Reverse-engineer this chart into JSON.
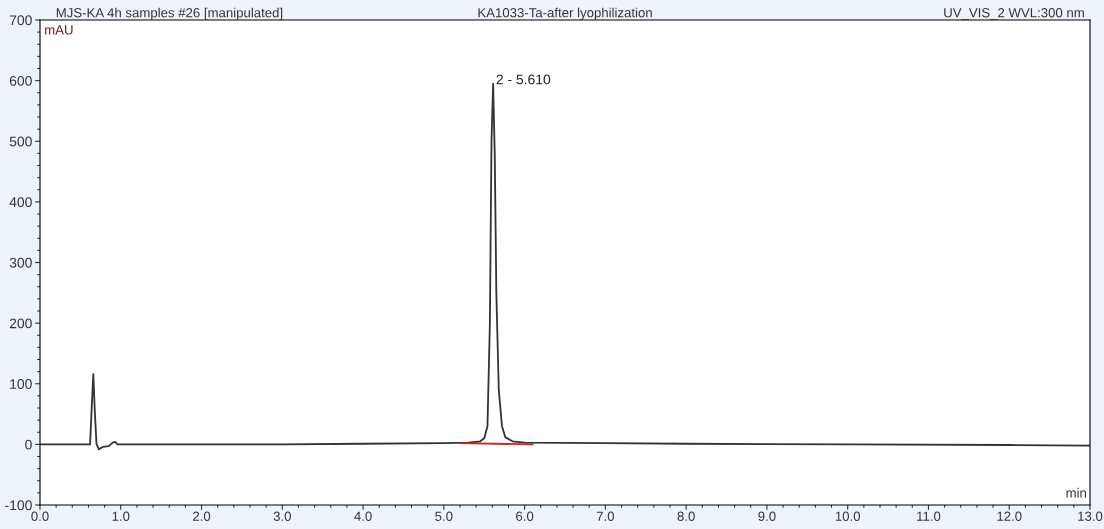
{
  "chart_data": {
    "type": "line",
    "title": "KA1033-Ta-after lyophilization",
    "xlabel": "min",
    "ylabel": "mAU",
    "annotations": [
      "MJS-KA 4h samples #26 [manipulated]",
      "UV_VIS_2 WVL:300 nm",
      {
        "text": "2 - 5.610",
        "x": 5.61,
        "y": 600
      }
    ],
    "series": [
      {
        "color": "#333333",
        "x": [
          0,
          0.62,
          0.64,
          0.66,
          0.68,
          0.7,
          0.73,
          0.78,
          0.85,
          0.9,
          0.93,
          0.96,
          1.5,
          3,
          4,
          5,
          5.3,
          5.45,
          5.5,
          5.54,
          5.57,
          5.59,
          5.61,
          5.63,
          5.65,
          5.68,
          5.72,
          5.76,
          5.85,
          6,
          7,
          8,
          10,
          12,
          13
        ],
        "values": [
          0,
          0,
          60,
          116,
          50,
          0,
          -8,
          -4,
          -3,
          3,
          4,
          0,
          0,
          0,
          1,
          2,
          3,
          5,
          10,
          30,
          200,
          500,
          595,
          480,
          250,
          90,
          30,
          12,
          5,
          3,
          2,
          1,
          0,
          -1,
          -2
        ]
      },
      {
        "color": "#cc2222",
        "x": [
          5.2,
          6.1
        ],
        "values": [
          2,
          0
        ]
      }
    ],
    "xlim": [
      0,
      13
    ],
    "ylim": [
      -100,
      700
    ],
    "xticks": [
      {
        "value": 0,
        "label": "0.0"
      },
      {
        "value": 1,
        "label": "1.0"
      },
      {
        "value": 2,
        "label": "2.0"
      },
      {
        "value": 3,
        "label": "3.0"
      },
      {
        "value": 4,
        "label": "4.0"
      },
      {
        "value": 5,
        "label": "5.0"
      },
      {
        "value": 6,
        "label": "6.0"
      },
      {
        "value": 7,
        "label": "7.0"
      },
      {
        "value": 8,
        "label": "8.0"
      },
      {
        "value": 9,
        "label": "9.0"
      },
      {
        "value": 10,
        "label": "10.0"
      },
      {
        "value": 11,
        "label": "11.0"
      },
      {
        "value": 12,
        "label": "12.0"
      },
      {
        "value": 13,
        "label": "13.0"
      }
    ],
    "yticks": [
      -100,
      0,
      100,
      200,
      300,
      400,
      500,
      600,
      700
    ],
    "grid": false,
    "legend": false,
    "marker": "none",
    "line_style": "solid"
  }
}
